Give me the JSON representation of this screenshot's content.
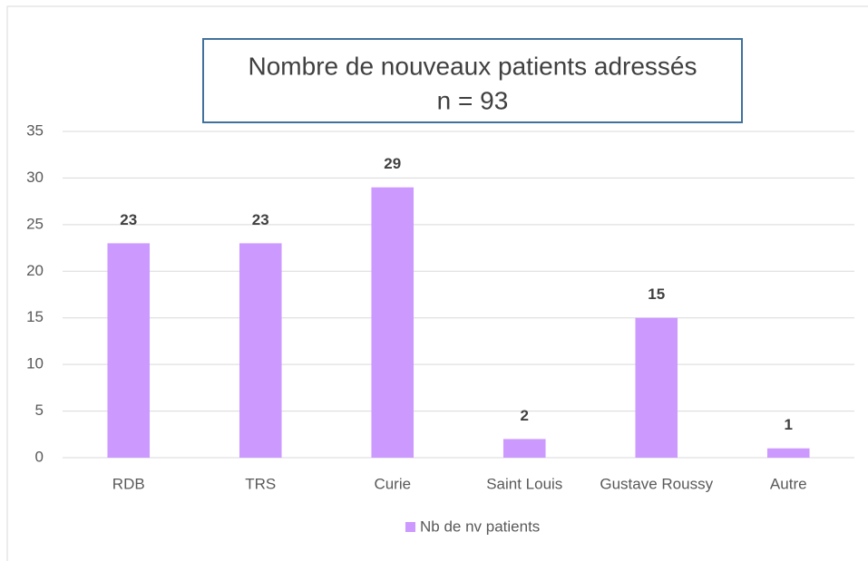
{
  "chart_data": {
    "type": "bar",
    "title": "Nombre de nouveaux patients  adressés",
    "subtitle": "n = 93",
    "categories": [
      "RDB",
      "TRS",
      "Curie",
      "Saint Louis",
      "Gustave Roussy",
      "Autre"
    ],
    "series": [
      {
        "name": "Nb de nv patients",
        "color": "#cc99ff",
        "values": [
          23,
          23,
          29,
          2,
          15,
          1
        ]
      }
    ],
    "ylim": [
      0,
      35
    ],
    "yticks": [
      0,
      5,
      10,
      15,
      20,
      25,
      30,
      35
    ],
    "grid": true,
    "legend": "bottom"
  }
}
